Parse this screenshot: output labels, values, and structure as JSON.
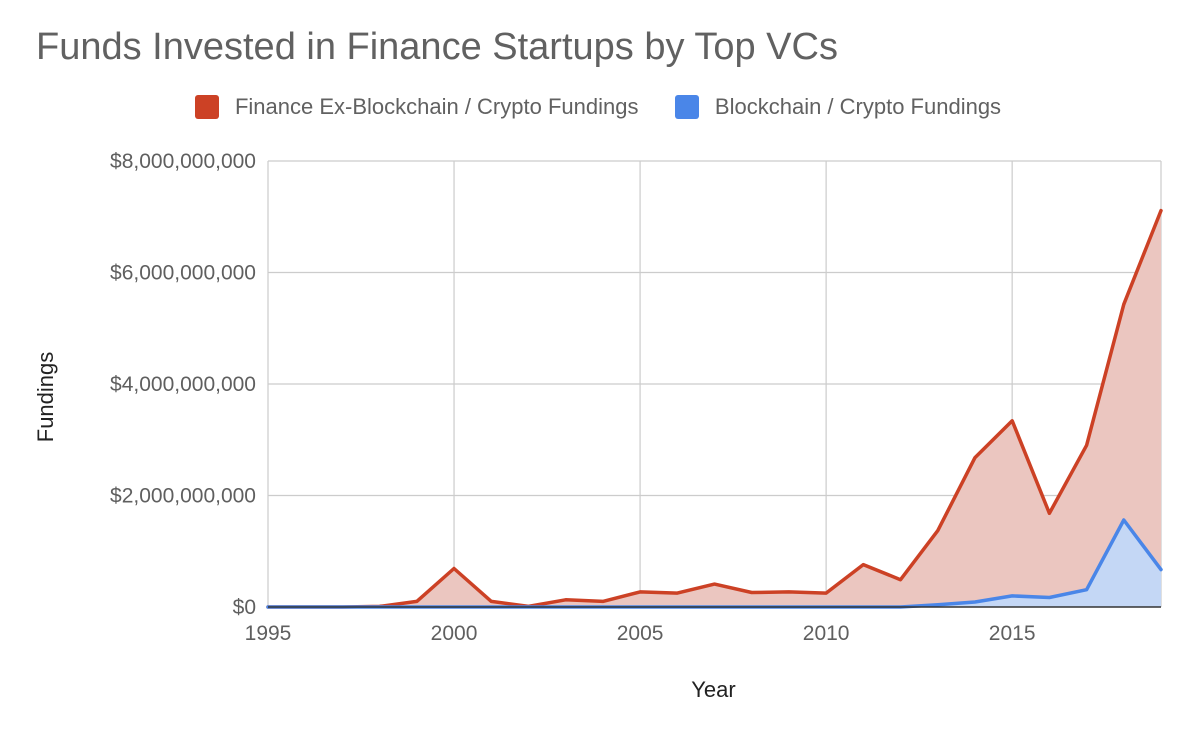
{
  "chart_data": {
    "type": "area",
    "title": "Funds Invested in Finance Startups by Top VCs",
    "xlabel": "Year",
    "ylabel": "Fundings",
    "xlim": [
      1995,
      2019
    ],
    "ylim": [
      0,
      8000000000
    ],
    "x_ticks": [
      "1995",
      "2000",
      "2005",
      "2010",
      "2015"
    ],
    "y_ticks": [
      "$0",
      "$2,000,000,000",
      "$4,000,000,000",
      "$6,000,000,000",
      "$8,000,000,000"
    ],
    "grid": true,
    "legend_position": "top",
    "x": [
      1995,
      1996,
      1997,
      1998,
      1999,
      2000,
      2001,
      2002,
      2003,
      2004,
      2005,
      2006,
      2007,
      2008,
      2009,
      2010,
      2011,
      2012,
      2013,
      2014,
      2015,
      2016,
      2017,
      2018,
      2019
    ],
    "series": [
      {
        "name": "Finance Ex-Blockchain / Crypto Fundings",
        "color": "#cc4125",
        "fill": "#ebc6c0",
        "values": [
          0,
          0,
          0,
          10000000,
          100000000,
          690000000,
          100000000,
          10000000,
          130000000,
          100000000,
          270000000,
          250000000,
          410000000,
          260000000,
          270000000,
          250000000,
          760000000,
          490000000,
          1370000000,
          2680000000,
          3340000000,
          1680000000,
          2900000000,
          5430000000,
          7110000000
        ]
      },
      {
        "name": "Blockchain / Crypto Fundings",
        "color": "#4a86e8",
        "fill": "#c4d7f5",
        "values": [
          0,
          0,
          0,
          0,
          0,
          0,
          0,
          0,
          0,
          0,
          0,
          0,
          0,
          0,
          0,
          0,
          0,
          0,
          40000000,
          90000000,
          200000000,
          170000000,
          310000000,
          1560000000,
          670000000
        ]
      }
    ]
  }
}
